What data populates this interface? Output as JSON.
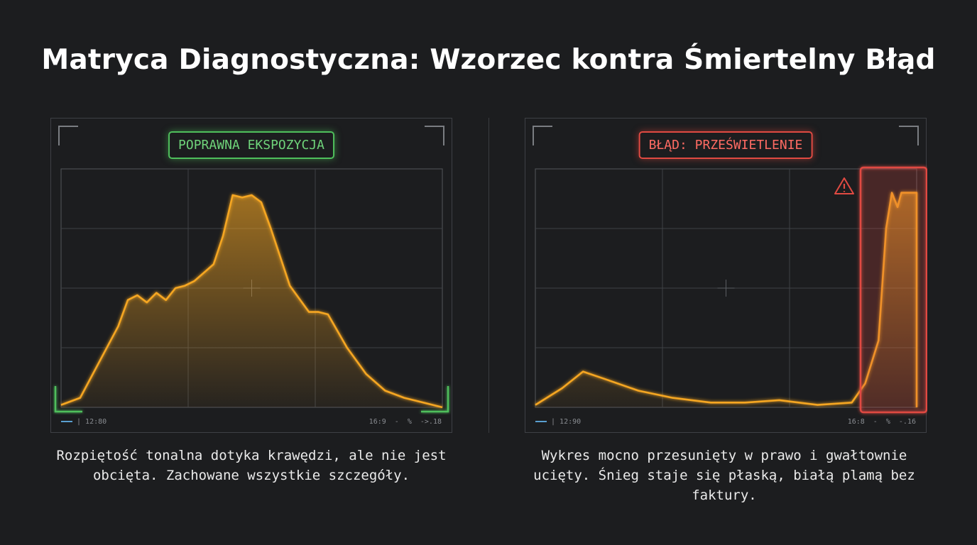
{
  "title": "Matryca Diagnostyczna: Wzorzec kontra Śmiertelny Błąd",
  "colors": {
    "background": "#1c1d1f",
    "curve": "#f5a623",
    "ok": "#4fbf5c",
    "error": "#e04a42"
  },
  "chart_data": [
    {
      "type": "area",
      "title": "POPRAWNA EKSPOZYCJA",
      "x": [
        0,
        5,
        10,
        15,
        17.5,
        20,
        22.5,
        25,
        27.5,
        30,
        32.5,
        35,
        40,
        42.5,
        45,
        47.5,
        50,
        52.5,
        55,
        60,
        65,
        67.5,
        70,
        75,
        80,
        85,
        90,
        95,
        100
      ],
      "values": [
        1,
        4,
        19,
        34,
        45,
        47,
        44,
        48,
        45,
        50,
        51,
        53,
        60,
        72,
        89,
        88,
        89,
        86,
        75,
        51,
        40,
        40,
        39,
        25,
        14,
        7,
        4,
        2,
        0
      ],
      "xlim": [
        0,
        100
      ],
      "ylim": [
        0,
        100
      ],
      "grid": true,
      "footer_left": "12:80",
      "footer_right": [
        "16:9 -",
        "%",
        "->.18"
      ],
      "caption": "Rozpiętość tonalna dotyka krawędzi, ale nie jest obcięta. Zachowane wszystkie szczegóły."
    },
    {
      "type": "area",
      "title": "BŁĄD: PRZEŚWIETLENIE",
      "x": [
        0,
        7,
        12.5,
        18,
        27,
        36,
        46,
        55,
        64,
        74,
        83,
        86.5,
        90,
        92,
        93.5,
        95,
        96,
        100
      ],
      "values": [
        1,
        8,
        15,
        12,
        7,
        4,
        2,
        2,
        3,
        1,
        2,
        10,
        28,
        75,
        90,
        84,
        90,
        90
      ],
      "xlim": [
        0,
        100
      ],
      "ylim": [
        0,
        100
      ],
      "grid": true,
      "clipping_warning": true,
      "footer_left": "12:90",
      "footer_right": [
        "16:8 -",
        "%",
        "-.16"
      ],
      "caption": "Wykres mocno przesunięty w prawo i gwałtownie ucięty. Śnieg staje się płaską, białą plamą bez faktury."
    }
  ]
}
